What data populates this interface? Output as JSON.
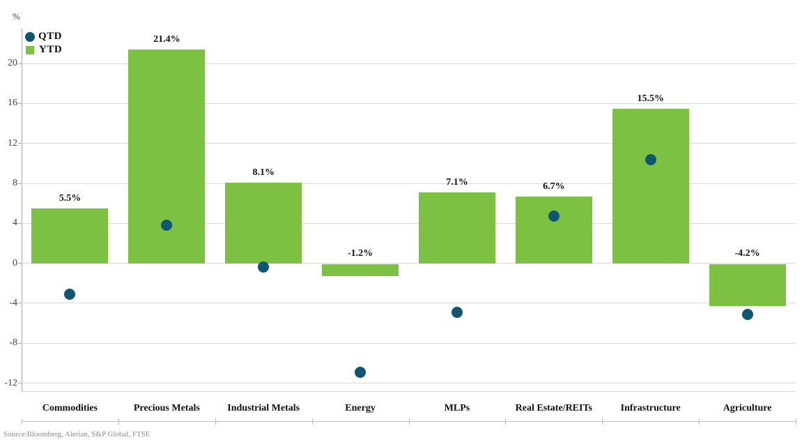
{
  "source_note": "Source:Bloomberg, Alerian, S&P Global, FTSE",
  "colors": {
    "ytd_green": "#7dc142",
    "qtd_teal": "#0e5671",
    "gridline": "#d9d9d9",
    "axis": "#a6a6a6"
  },
  "chart_data": {
    "type": "bar",
    "title": "",
    "xlabel": "",
    "ylabel": "%",
    "categories": [
      "Commodities",
      "Precious Metals",
      "Industrial Metals",
      "Energy",
      "MLPs",
      "Real Estate/REITs",
      "Infrastructure",
      "Agriculture"
    ],
    "series": [
      {
        "name": "YTD",
        "type": "bar",
        "color": "#7dc142",
        "values": [
          5.5,
          21.4,
          8.1,
          -1.2,
          7.1,
          6.7,
          15.5,
          -4.2
        ],
        "labels": [
          "5.5%",
          "21.4%",
          "8.1%",
          "-1.2%",
          "7.1%",
          "6.7%",
          "15.5%",
          "-4.2%"
        ]
      },
      {
        "name": "QTD",
        "type": "scatter",
        "color": "#0e5671",
        "values": [
          -3.1,
          3.8,
          -0.4,
          -10.9,
          -4.9,
          4.7,
          10.4,
          -5.1
        ]
      }
    ],
    "yticks": [
      20,
      16,
      12,
      8,
      4,
      0,
      -4,
      -8,
      -12
    ],
    "ylim": [
      -12.8,
      23.5
    ],
    "grid": true,
    "legend": {
      "position": "top-left",
      "items": [
        {
          "label": "QTD",
          "marker": "circle",
          "color": "#0e5671"
        },
        {
          "label": "YTD",
          "marker": "square",
          "color": "#7dc142"
        }
      ]
    }
  }
}
